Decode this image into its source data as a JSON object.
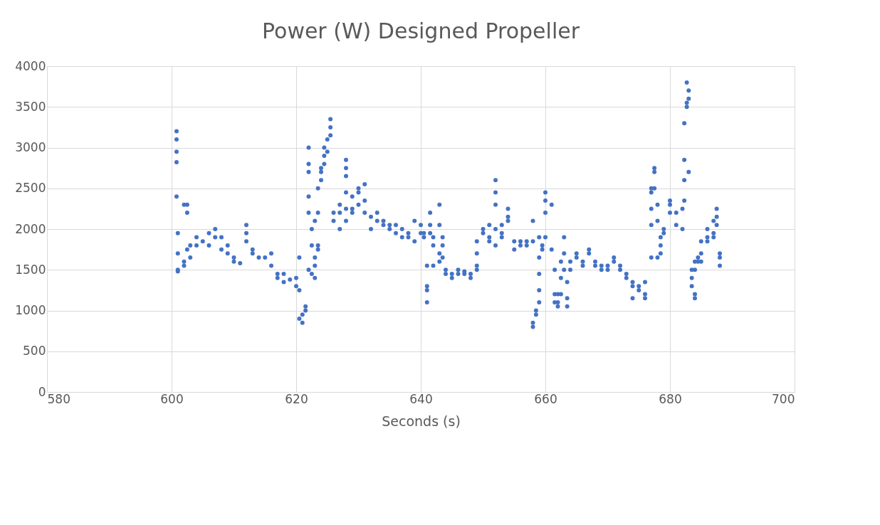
{
  "chart_data": {
    "type": "scatter",
    "title": "Power (W) Designed Propeller",
    "xlabel": "Seconds (s)",
    "xlim": [
      580,
      700
    ],
    "xticks": [
      580,
      600,
      620,
      640,
      660,
      680,
      700
    ],
    "ylim": [
      0,
      4000
    ],
    "yticks": [
      0,
      500,
      1000,
      1500,
      2000,
      2500,
      3000,
      3500,
      4000
    ],
    "grid": true,
    "marker": "circle",
    "series": [
      {
        "color": "#4472c4",
        "x": [
          600.8,
          600.8,
          600.8,
          600.8,
          600.8,
          601,
          601,
          601,
          601,
          602,
          602,
          602,
          602.5,
          602.5,
          602.5,
          603,
          603,
          604,
          604,
          605,
          606,
          606,
          607,
          607,
          608,
          608,
          609,
          609,
          610,
          610,
          611,
          612,
          612,
          612,
          613,
          613,
          614,
          615,
          616,
          616,
          617,
          617,
          618,
          618,
          619,
          620,
          620,
          620.5,
          620.5,
          620.5,
          621,
          621,
          621.5,
          621.5,
          622,
          622,
          622,
          622,
          622,
          622,
          622.5,
          622.5,
          622.5,
          623,
          623,
          623,
          623,
          623.5,
          623.5,
          623.5,
          623.5,
          624,
          624,
          624,
          624.5,
          624.5,
          624.5,
          625,
          625,
          625.5,
          625.5,
          625.5,
          626,
          626,
          627,
          627,
          627,
          628,
          628,
          628,
          628,
          628,
          628,
          629,
          629,
          629,
          630,
          630,
          630,
          631,
          631,
          631,
          632,
          632,
          633,
          633,
          634,
          634,
          635,
          635,
          636,
          636,
          637,
          637,
          638,
          638,
          639,
          639,
          640,
          640,
          640.5,
          640.5,
          641,
          641,
          641,
          641,
          641.5,
          641.5,
          641.5,
          642,
          642,
          642,
          643,
          643,
          643,
          643,
          643.5,
          643.5,
          643.5,
          644,
          644,
          645,
          645,
          646,
          646,
          647,
          647,
          648,
          648,
          649,
          649,
          649,
          649,
          650,
          650,
          651,
          651,
          651,
          652,
          652,
          652,
          652,
          652,
          653,
          653,
          653,
          654,
          654,
          654,
          655,
          655,
          656,
          656,
          657,
          657,
          658,
          658,
          658,
          658,
          658.5,
          658.5,
          659,
          659,
          659,
          659,
          659,
          659.5,
          659.5,
          660,
          660,
          660,
          660,
          661,
          661,
          661.5,
          661.5,
          661.5,
          662,
          662,
          662,
          662.5,
          662.5,
          662.5,
          663,
          663,
          663,
          663.5,
          663.5,
          663.5,
          664,
          664,
          665,
          665,
          666,
          666,
          667,
          667,
          668,
          668,
          669,
          669,
          670,
          670,
          671,
          671,
          672,
          672,
          673,
          673,
          674,
          674,
          674,
          675,
          675,
          676,
          676,
          676,
          677,
          677,
          677,
          677,
          677,
          677.5,
          677.5,
          677.5,
          678,
          678,
          678,
          678.5,
          678.5,
          678.5,
          679,
          679,
          680,
          680,
          680,
          681,
          681,
          682,
          682,
          682.3,
          682.3,
          682.3,
          682.3,
          682.7,
          682.7,
          682.7,
          683,
          683,
          683,
          683.5,
          683.5,
          683.5,
          684,
          684,
          684,
          684,
          684.5,
          684.5,
          685,
          685,
          685,
          686,
          686,
          686,
          687,
          687,
          687,
          687.5,
          687.5,
          687.5,
          688,
          688,
          688
        ],
        "values": [
          3200,
          3100,
          2950,
          2820,
          2400,
          1950,
          1700,
          1500,
          1480,
          2300,
          1550,
          1600,
          2300,
          2200,
          1750,
          1800,
          1650,
          1900,
          1800,
          1850,
          1950,
          1800,
          2000,
          1900,
          1900,
          1750,
          1700,
          1800,
          1650,
          1600,
          1580,
          1950,
          2050,
          1850,
          1750,
          1700,
          1650,
          1650,
          1700,
          1550,
          1400,
          1450,
          1350,
          1450,
          1380,
          1300,
          1400,
          1650,
          1250,
          900,
          850,
          950,
          1000,
          1050,
          3000,
          2800,
          2700,
          1500,
          2400,
          2200,
          1800,
          2000,
          1450,
          1650,
          1400,
          1550,
          2100,
          2500,
          2200,
          1750,
          1800,
          2700,
          2600,
          2750,
          2900,
          3000,
          2800,
          3100,
          2950,
          3350,
          3250,
          3150,
          2200,
          2100,
          2300,
          2200,
          2000,
          2850,
          2750,
          2650,
          2450,
          2250,
          2100,
          2400,
          2200,
          2250,
          2500,
          2300,
          2450,
          2550,
          2350,
          2200,
          2150,
          2000,
          2100,
          2200,
          2100,
          2050,
          2000,
          2050,
          1950,
          2050,
          2000,
          1900,
          1950,
          1900,
          2100,
          1850,
          2050,
          1950,
          1950,
          1900,
          1550,
          1300,
          1250,
          1100,
          2200,
          1950,
          2050,
          1900,
          1800,
          1550,
          2300,
          2050,
          1700,
          1600,
          1900,
          1800,
          1650,
          1500,
          1450,
          1400,
          1450,
          1450,
          1500,
          1450,
          1480,
          1400,
          1450,
          1500,
          1550,
          1700,
          1850,
          1950,
          2000,
          1900,
          1850,
          2050,
          2600,
          2450,
          2300,
          2000,
          1800,
          1900,
          1950,
          2050,
          2100,
          2250,
          2150,
          1850,
          1750,
          1800,
          1850,
          1800,
          1850,
          2100,
          1850,
          800,
          850,
          1000,
          950,
          1100,
          1250,
          1450,
          1900,
          1650,
          1800,
          1750,
          2450,
          2350,
          2200,
          1900,
          2300,
          1750,
          1500,
          1200,
          1100,
          1200,
          1050,
          1100,
          1600,
          1400,
          1200,
          1900,
          1700,
          1500,
          1350,
          1150,
          1050,
          1600,
          1500,
          1700,
          1650,
          1600,
          1550,
          1750,
          1700,
          1600,
          1550,
          1550,
          1500,
          1500,
          1550,
          1600,
          1650,
          1500,
          1550,
          1450,
          1400,
          1300,
          1150,
          1350,
          1300,
          1250,
          1200,
          1150,
          1350,
          2500,
          2450,
          2250,
          2050,
          1650,
          2750,
          2700,
          2500,
          2300,
          2100,
          1650,
          1900,
          1800,
          1700,
          2000,
          1950,
          2300,
          2200,
          2350,
          2050,
          2200,
          2250,
          2000,
          2850,
          2600,
          2350,
          3300,
          3800,
          3550,
          3500,
          2700,
          3700,
          3600,
          1500,
          1400,
          1300,
          1200,
          1150,
          1600,
          1500,
          1650,
          1600,
          1700,
          1850,
          1600,
          1900,
          2000,
          1850,
          1950,
          2100,
          1900,
          2250,
          2150,
          2050,
          1700,
          1650,
          1550
        ]
      }
    ]
  }
}
